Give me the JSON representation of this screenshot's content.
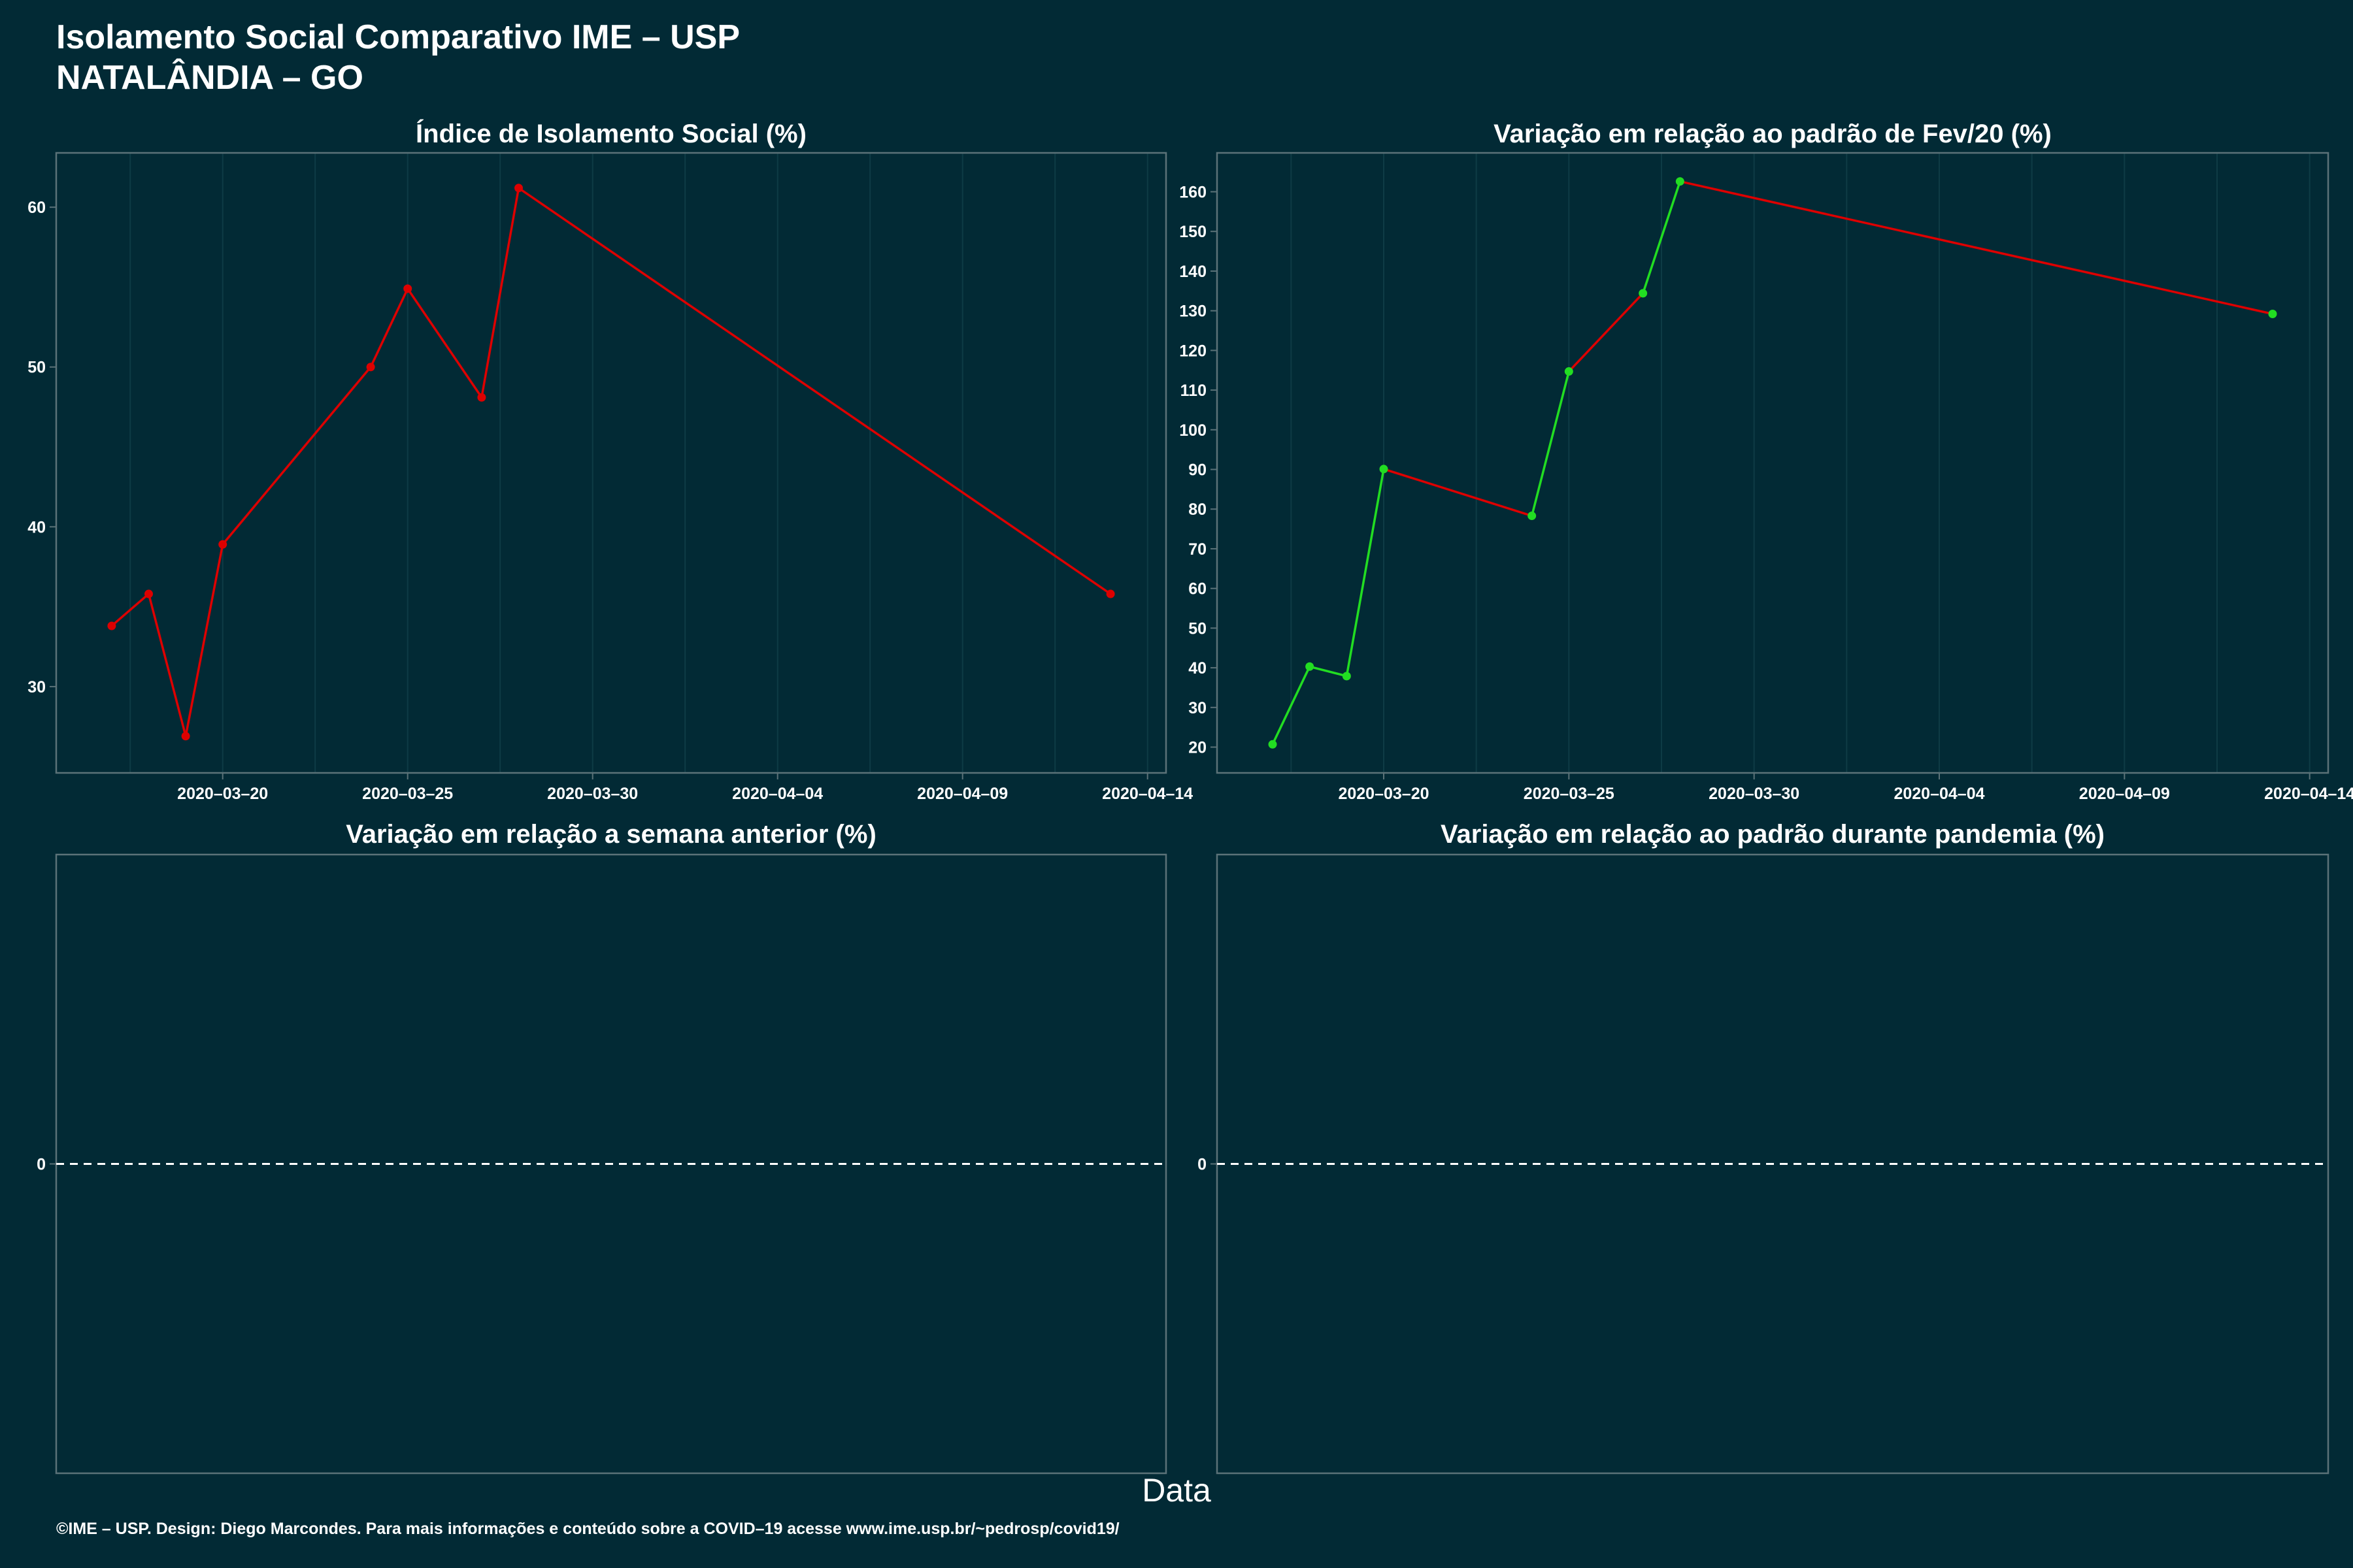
{
  "title": {
    "line1": "Isolamento Social Comparativo IME – USP",
    "line2": "NATALÂNDIA – GO"
  },
  "xlabel": "Data",
  "footer": "©IME – USP. Design: Diego Marcondes. Para mais informações e conteúdo sobre a COVID–19 acesse www.ime.usp.br/~pedrosp/covid19/",
  "colors": {
    "background": "#022a35",
    "panel_border": "#5b7278",
    "grid": "#0e3b45",
    "red": "#dd0000",
    "green": "#22dd22",
    "text": "#ffffff"
  },
  "chart_data": [
    {
      "type": "line",
      "title": "Índice de Isolamento Social (%)",
      "x": [
        "2020-03-17",
        "2020-03-18",
        "2020-03-19",
        "2020-03-20",
        "2020-03-24",
        "2020-03-25",
        "2020-03-27",
        "2020-03-28",
        "2020-04-13"
      ],
      "values": [
        33.8,
        35.8,
        26.9,
        38.9,
        50.0,
        54.9,
        48.1,
        61.2,
        35.8
      ],
      "point_colors": [
        "red",
        "red",
        "red",
        "red",
        "red",
        "red",
        "red",
        "red",
        "red"
      ],
      "segment_colors": [
        "red",
        "red",
        "red",
        "red",
        "red",
        "red",
        "red",
        "red"
      ],
      "xlim": [
        "2020-03-15.5",
        "2020-04-14.5"
      ],
      "ylim": [
        24.6,
        63.4
      ],
      "yticks": [
        30,
        40,
        50,
        60
      ],
      "xticks": [
        "2020–03–20",
        "2020–03–25",
        "2020–03–30",
        "2020–04–04",
        "2020–04–09",
        "2020–04–14"
      ],
      "grid": true
    },
    {
      "type": "line",
      "title": "Variação em relação ao padrão de Fev/20 (%)",
      "x": [
        "2020-03-17",
        "2020-03-18",
        "2020-03-19",
        "2020-03-20",
        "2020-03-24",
        "2020-03-25",
        "2020-03-27",
        "2020-03-28",
        "2020-04-13"
      ],
      "values": [
        20.7,
        40.3,
        37.9,
        90.1,
        78.3,
        114.7,
        134.4,
        162.6,
        129.2
      ],
      "point_colors": [
        "green",
        "green",
        "green",
        "green",
        "green",
        "green",
        "green",
        "green",
        "green"
      ],
      "segment_colors": [
        "green",
        "green",
        "green",
        "red",
        "green",
        "red",
        "green",
        "red"
      ],
      "xlim": [
        "2020-03-15.5",
        "2020-04-14.5"
      ],
      "ylim": [
        13.5,
        169.8
      ],
      "yticks": [
        20,
        30,
        40,
        50,
        60,
        70,
        80,
        90,
        100,
        110,
        120,
        130,
        140,
        150,
        160
      ],
      "xticks": [
        "2020–03–20",
        "2020–03–25",
        "2020–03–30",
        "2020–04–04",
        "2020–04–09",
        "2020–04–14"
      ],
      "grid": true
    },
    {
      "type": "line",
      "title": "Variação em relação a semana anterior (%)",
      "x": [],
      "values": [],
      "ylim": [
        -1,
        1
      ],
      "yticks": [
        0
      ],
      "reference_line": 0,
      "grid": false
    },
    {
      "type": "line",
      "title": "Variação em relação ao padrão durante pandemia (%)",
      "x": [],
      "values": [],
      "ylim": [
        -1,
        1
      ],
      "yticks": [
        0
      ],
      "reference_line": 0,
      "grid": false
    }
  ]
}
